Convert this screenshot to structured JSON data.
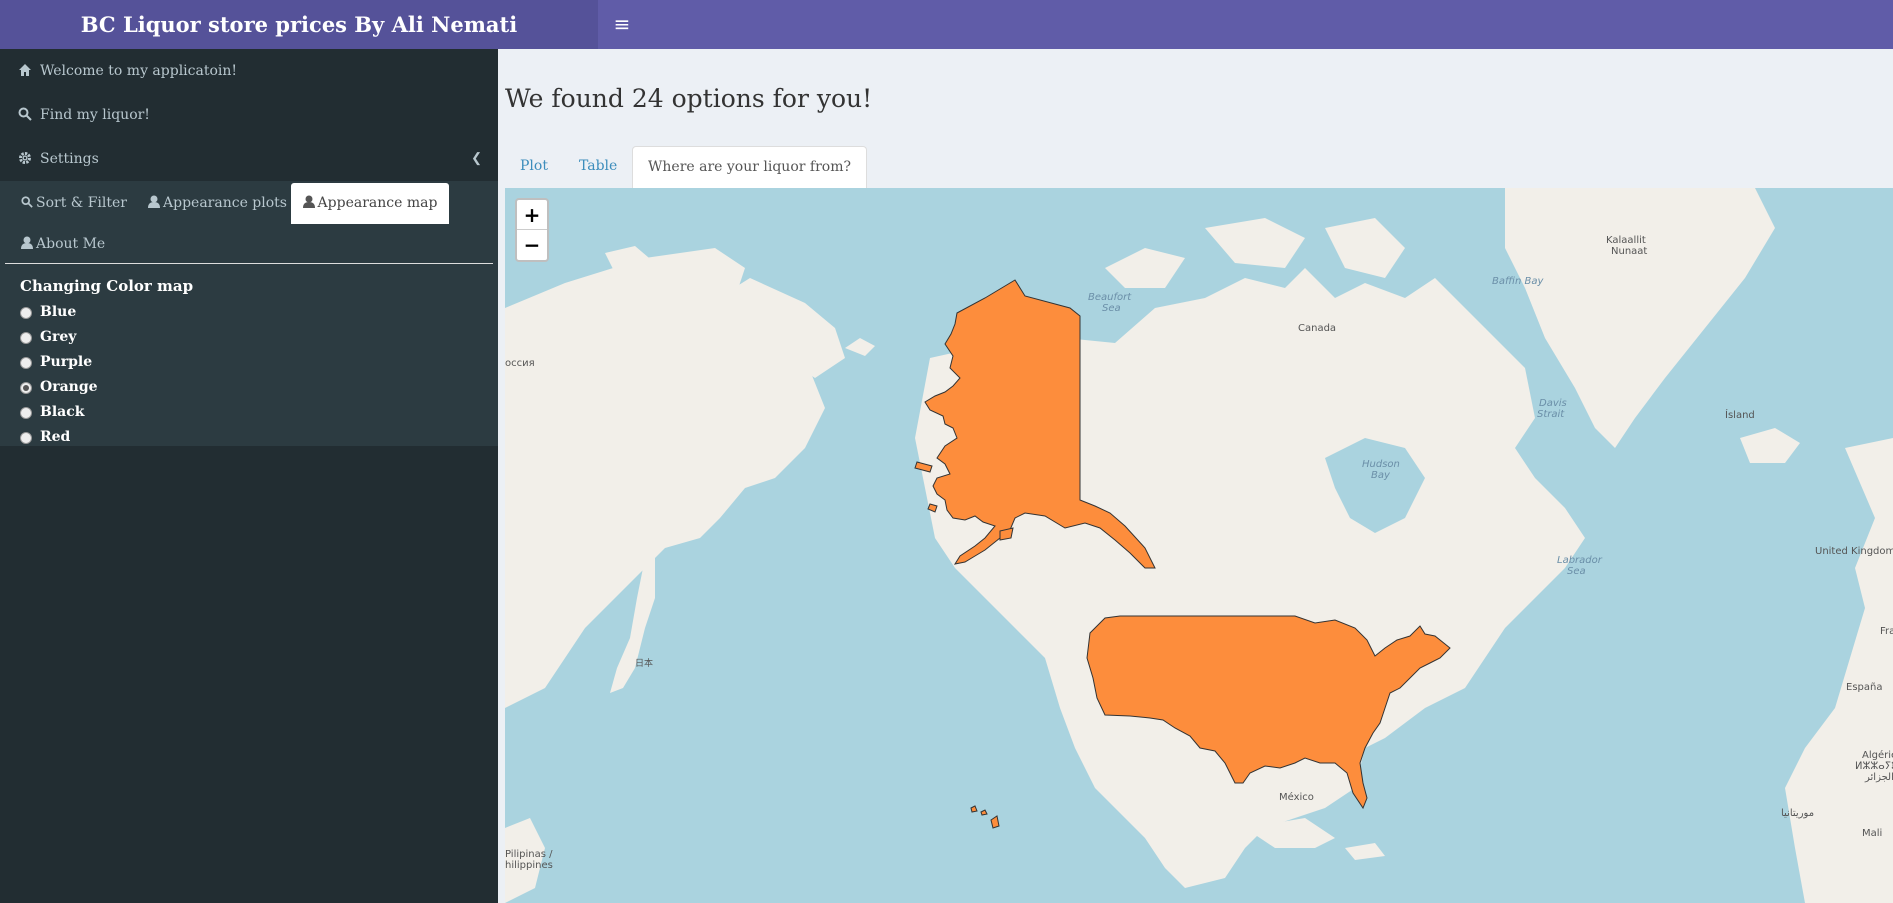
{
  "header": {
    "title": "BC Liquor store prices By Ali Nemati"
  },
  "sidebar": {
    "items": [
      {
        "label": "Welcome to my applicatoin!",
        "icon": "home-icon"
      },
      {
        "label": "Find my liquor!",
        "icon": "search-icon"
      },
      {
        "label": "Settings",
        "icon": "gear-icon"
      }
    ],
    "settings_tabs": [
      {
        "label": "Sort & Filter",
        "icon": "search-icon"
      },
      {
        "label": "Appearance plots",
        "icon": "user-icon"
      },
      {
        "label": "Appearance map",
        "icon": "user-icon",
        "active": true
      },
      {
        "label": "About Me",
        "icon": "user-icon"
      }
    ],
    "color_map": {
      "title": "Changing Color map",
      "options": [
        "Blue",
        "Grey",
        "Purple",
        "Orange",
        "Black",
        "Red"
      ],
      "selected": "Orange"
    }
  },
  "main": {
    "heading": "We found 24 options for you!",
    "tabs": [
      "Plot",
      "Table",
      "Where are your liquor from?"
    ],
    "active_tab": "Where are your liquor from?"
  },
  "map": {
    "zoom_in": "+",
    "zoom_out": "−",
    "fill_color": "#fd8d3c",
    "highlighted_country": "United States",
    "labels": {
      "kalaallit1": "Kalaallit",
      "kalaallit2": "Nunaat",
      "baffin": "Baffin Bay",
      "beaufort1": "Beaufort",
      "beaufort2": "Sea",
      "canada": "Canada",
      "rossiya": "оссия",
      "davis1": "Davis",
      "davis2": "Strait",
      "island": "Ísland",
      "hudson1": "Hudson",
      "hudson2": "Bay",
      "labrador1": "Labrador",
      "labrador2": "Sea",
      "uk": "United Kingdom",
      "nihon": "日本",
      "espana": "España",
      "fra": "Fra",
      "mexico": "México",
      "algerie1": "Algérie",
      "algerie2": "ⵍⵣⵣⴰⵢⴻⵔ",
      "algerie3": "الجزائر",
      "mauritania": "موريتانيا",
      "mali": "Mali",
      "pilipinas1": "Pilipinas /",
      "pilipinas2": "hilippines"
    }
  }
}
